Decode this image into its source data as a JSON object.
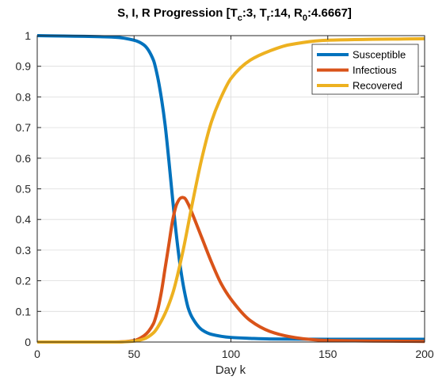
{
  "chart_data": {
    "type": "line",
    "title": {
      "prefix": "S, I, R Progression [T",
      "tc_sub": "c",
      "tc_val": ":3, T",
      "tr_sub": "r",
      "tr_val": ":14, R",
      "r0_sub": "0",
      "r0_val": ":4.6667]"
    },
    "xlabel": "Day k",
    "ylabel": "",
    "xlim": [
      0,
      200
    ],
    "ylim": [
      0,
      1
    ],
    "xticks": [
      0,
      50,
      100,
      150,
      200
    ],
    "yticks": [
      0,
      0.1,
      0.2,
      0.3,
      0.4,
      0.5,
      0.6,
      0.7,
      0.8,
      0.9,
      1
    ],
    "xtick_labels": [
      "0",
      "50",
      "100",
      "150",
      "200"
    ],
    "ytick_labels": [
      "0",
      "0.1",
      "0.2",
      "0.3",
      "0.4",
      "0.5",
      "0.6",
      "0.7",
      "0.8",
      "0.9",
      "1"
    ],
    "grid": true,
    "legend_position": "top-right",
    "series": [
      {
        "name": "Susceptible",
        "color": "#0072BD",
        "x": [
          0,
          40,
          50,
          55,
          60,
          62,
          64,
          66,
          68,
          70,
          72,
          74,
          76,
          78,
          80,
          85,
          90,
          100,
          110,
          120,
          150,
          200
        ],
        "y": [
          1.0,
          0.995,
          0.985,
          0.97,
          0.92,
          0.87,
          0.8,
          0.71,
          0.59,
          0.46,
          0.34,
          0.24,
          0.165,
          0.11,
          0.08,
          0.04,
          0.025,
          0.015,
          0.012,
          0.01,
          0.009,
          0.009
        ]
      },
      {
        "name": "Infectious",
        "color": "#D95319",
        "x": [
          0,
          40,
          50,
          55,
          60,
          62,
          64,
          66,
          68,
          70,
          72,
          74,
          75,
          76,
          78,
          80,
          85,
          90,
          95,
          100,
          110,
          120,
          130,
          140,
          150,
          200
        ],
        "y": [
          0,
          0,
          0.005,
          0.02,
          0.06,
          0.1,
          0.16,
          0.24,
          0.32,
          0.4,
          0.45,
          0.47,
          0.472,
          0.47,
          0.45,
          0.42,
          0.34,
          0.26,
          0.19,
          0.14,
          0.07,
          0.035,
          0.018,
          0.009,
          0.005,
          0.002
        ]
      },
      {
        "name": "Recovered",
        "color": "#EDB120",
        "x": [
          0,
          40,
          50,
          55,
          60,
          65,
          70,
          75,
          80,
          85,
          90,
          95,
          100,
          110,
          120,
          130,
          150,
          200
        ],
        "y": [
          0,
          0,
          0.003,
          0.01,
          0.03,
          0.08,
          0.16,
          0.29,
          0.45,
          0.6,
          0.72,
          0.8,
          0.86,
          0.92,
          0.95,
          0.97,
          0.985,
          0.99
        ]
      }
    ]
  }
}
